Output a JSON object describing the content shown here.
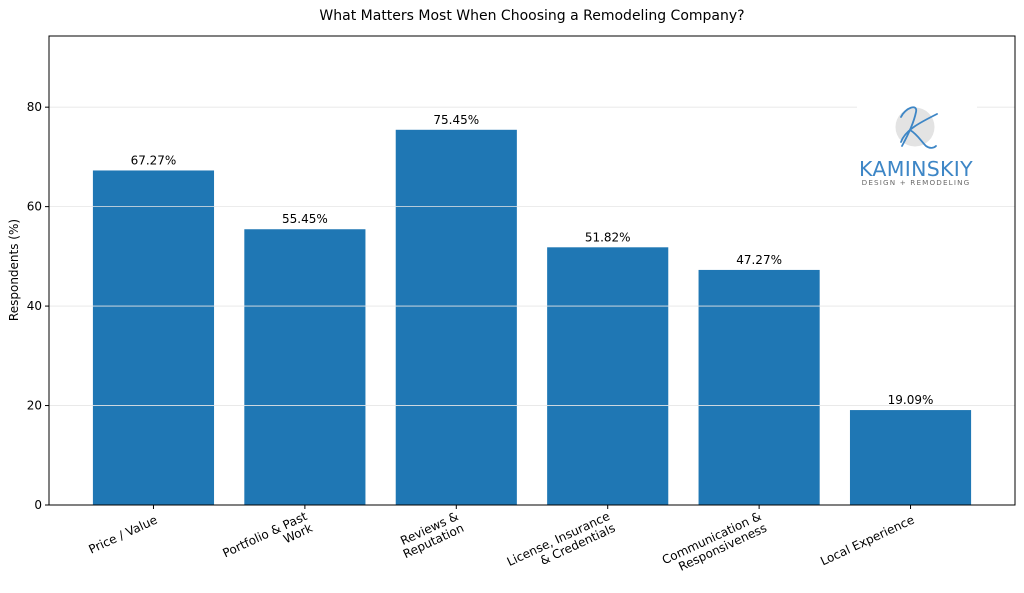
{
  "chart_data": {
    "type": "bar",
    "title": "What Matters Most When Choosing a Remodeling Company?",
    "xlabel": "",
    "ylabel": "Respondents (%)",
    "categories": [
      "Price / Value",
      "Portfolio & Past\nWork",
      "Reviews &\nReputation",
      "License, Insurance\n& Credentials",
      "Communication &\nResponsiveness",
      "Local Experience"
    ],
    "values": [
      67.27,
      55.45,
      75.45,
      51.82,
      47.27,
      19.09
    ],
    "data_labels": [
      "67.27%",
      "55.45%",
      "75.45%",
      "51.82%",
      "47.27%",
      "19.09%"
    ],
    "ylim": [
      0,
      94.31
    ],
    "yticks": [
      0,
      20,
      40,
      60,
      80
    ],
    "grid": {
      "axis": "y",
      "on": true,
      "color": "#e6e6e6"
    },
    "legend": null,
    "bar_color": "#1f77b4",
    "xtick_rotation": 25
  },
  "logo": {
    "monogram": "K",
    "name": "KAMINSKIY",
    "tagline": "DESIGN + REMODELING",
    "brand_color": "#3d86c6"
  }
}
